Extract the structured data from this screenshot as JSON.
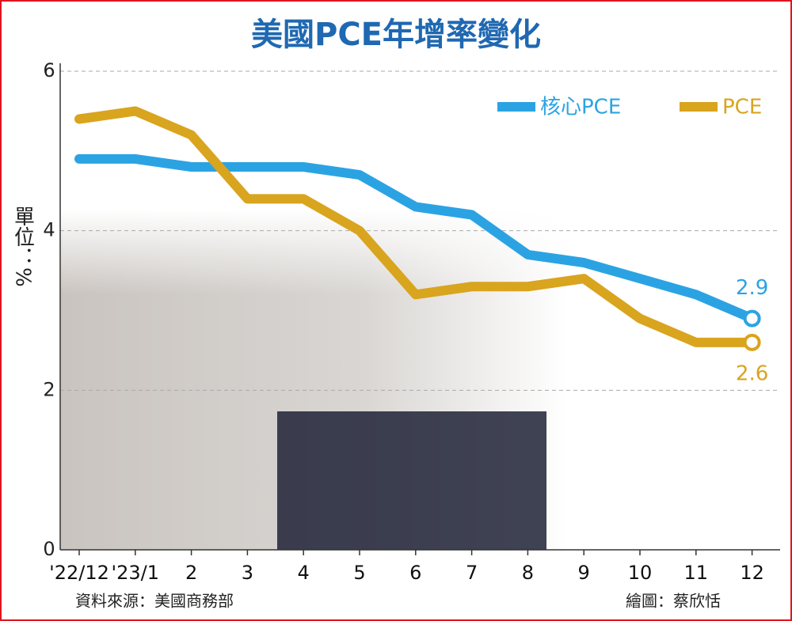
{
  "chart_data": {
    "type": "line",
    "title": "美國PCE年增率變化",
    "ylabel": "單位：%",
    "source": "資料來源：美國商務部",
    "credit": "繪圖：蔡欣恬",
    "categories": [
      "'22/12",
      "'23/1",
      "2",
      "3",
      "4",
      "5",
      "6",
      "7",
      "8",
      "9",
      "10",
      "11",
      "12"
    ],
    "series": [
      {
        "name": "核心PCE",
        "color": "#2ba3e3",
        "values": [
          4.9,
          4.9,
          4.8,
          4.8,
          4.8,
          4.7,
          4.3,
          4.2,
          3.7,
          3.6,
          3.4,
          3.2,
          2.9
        ]
      },
      {
        "name": "PCE",
        "color": "#d9a41e",
        "values": [
          5.4,
          5.5,
          5.2,
          4.4,
          4.4,
          4.0,
          3.2,
          3.3,
          3.3,
          3.4,
          2.9,
          2.6,
          2.6
        ]
      }
    ],
    "ylim": [
      0,
      6
    ],
    "yticks": [
      0,
      2,
      4,
      6
    ],
    "grid": true
  }
}
